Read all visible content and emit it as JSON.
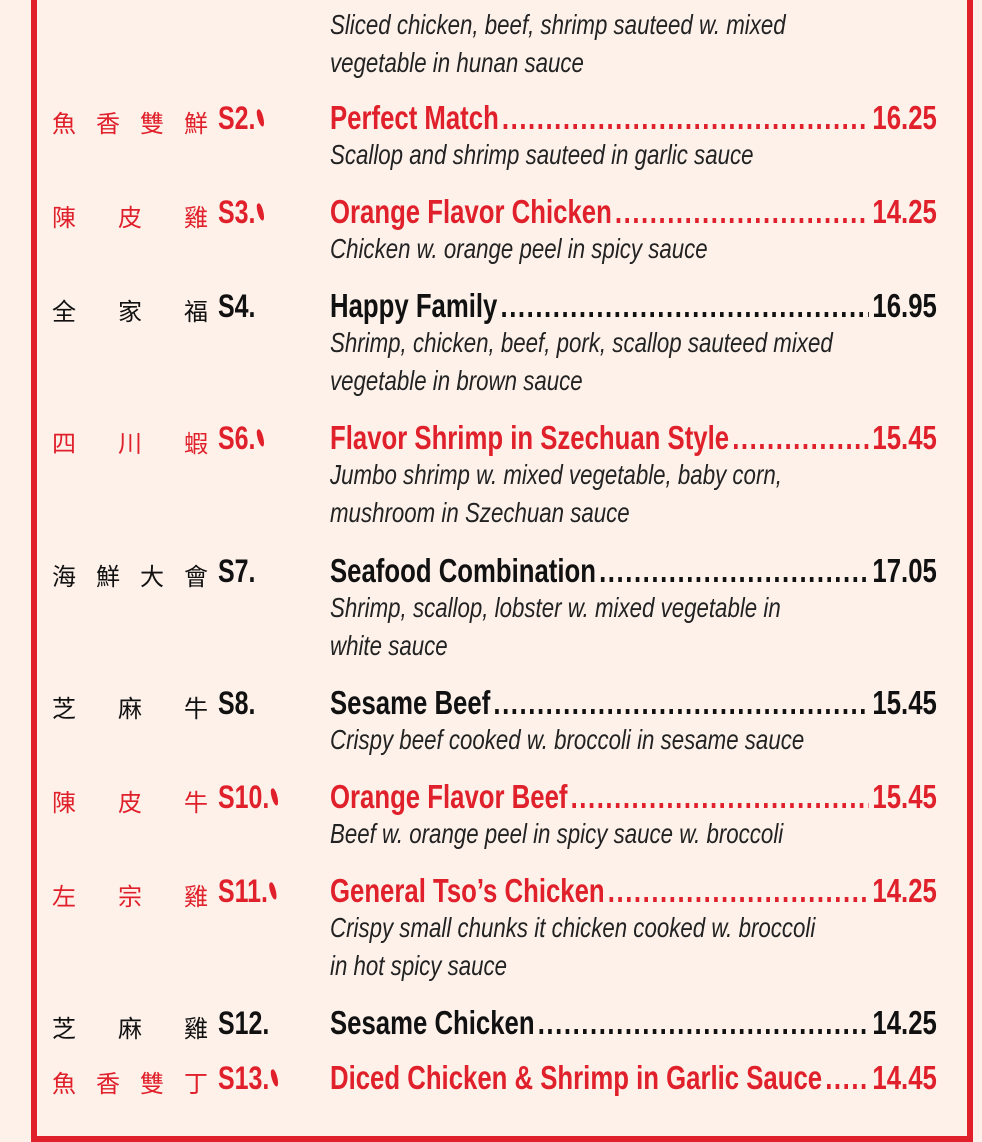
{
  "top_partial": {
    "desc": [
      "Sliced chicken, beef, shrimp sauteed w. mixed",
      "vegetable in hunan sauce"
    ]
  },
  "items": [
    {
      "zh": [
        "魚",
        "香",
        "雙",
        "鮮"
      ],
      "code": "S2.",
      "spicy": true,
      "name": "Perfect Match",
      "price": "16.25",
      "desc": [
        "Scallop and shrimp sauteed in garlic sauce"
      ]
    },
    {
      "zh": [
        "陳",
        "皮",
        "雞"
      ],
      "code": "S3.",
      "spicy": true,
      "name": "Orange Flavor Chicken",
      "price": "14.25",
      "desc": [
        "Chicken w. orange peel in spicy sauce"
      ]
    },
    {
      "zh": [
        "全",
        "家",
        "福"
      ],
      "code": "S4.",
      "spicy": false,
      "name": "Happy Family",
      "price": "16.95",
      "desc": [
        "Shrimp, chicken, beef, pork, scallop sauteed mixed",
        "vegetable in brown sauce"
      ]
    },
    {
      "zh": [
        "四",
        "川",
        "蝦"
      ],
      "code": "S6.",
      "spicy": true,
      "name": "Flavor Shrimp in Szechuan Style",
      "price": "15.45",
      "desc": [
        "Jumbo shrimp w. mixed vegetable, baby corn,",
        "mushroom in Szechuan sauce"
      ]
    },
    {
      "zh": [
        "海",
        "鮮",
        "大",
        "會"
      ],
      "code": "S7.",
      "spicy": false,
      "name": "Seafood Combination",
      "price": "17.05",
      "desc": [
        "Shrimp, scallop, lobster w. mixed vegetable in",
        "white sauce"
      ]
    },
    {
      "zh": [
        "芝",
        "麻",
        "牛"
      ],
      "code": "S8.",
      "spicy": false,
      "name": "Sesame Beef",
      "price": "15.45",
      "desc": [
        "Crispy beef cooked w. broccoli in sesame sauce"
      ]
    },
    {
      "zh": [
        "陳",
        "皮",
        "牛"
      ],
      "code": "S10.",
      "spicy": true,
      "name": "Orange Flavor Beef",
      "price": "15.45",
      "desc": [
        "Beef w. orange peel in spicy sauce w. broccoli"
      ]
    },
    {
      "zh": [
        "左",
        "宗",
        "雞"
      ],
      "code": "S11.",
      "spicy": true,
      "name": "General Tso’s Chicken",
      "price": "14.25",
      "desc": [
        "Crispy small chunks it chicken cooked w. broccoli",
        "in hot spicy sauce"
      ]
    },
    {
      "zh": [
        "芝",
        "麻",
        "雞"
      ],
      "code": "S12.",
      "spicy": false,
      "name": "Sesame Chicken",
      "price": "14.25",
      "desc": []
    },
    {
      "zh": [
        "魚",
        "香",
        "雙",
        "丁"
      ],
      "code": "S13.",
      "spicy": true,
      "name": "Diced Chicken & Shrimp in Garlic Sauce",
      "price": "14.45",
      "desc": []
    }
  ],
  "colors": {
    "spicy": "#e0202a",
    "regular": "#111111",
    "background": "#fdf1ea"
  }
}
